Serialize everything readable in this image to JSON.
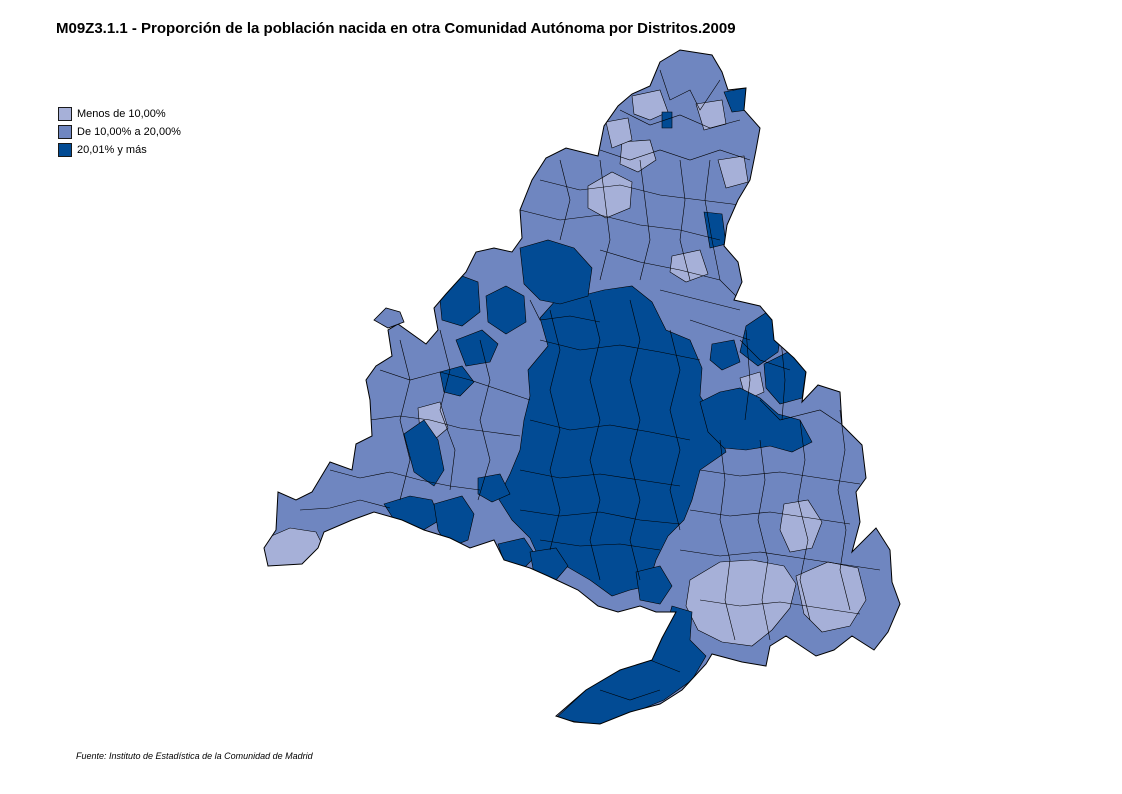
{
  "title": "M09Z3.1.1 - Proporción de la población nacida en otra Comunidad Autónoma por Distritos.2009",
  "legend": {
    "items": [
      {
        "label": "Menos de 10,00%",
        "color": "#a6b0d8"
      },
      {
        "label": "De 10,00% a 20,00%",
        "color": "#6f86c0"
      },
      {
        "label": "20,01% y más",
        "color": "#024b94"
      }
    ]
  },
  "source": "Fuente: Instituto de Estadística de la Comunidad de Madrid",
  "map": {
    "region": "Comunidad de Madrid",
    "unit": "Distritos",
    "border_color": "#000000"
  }
}
